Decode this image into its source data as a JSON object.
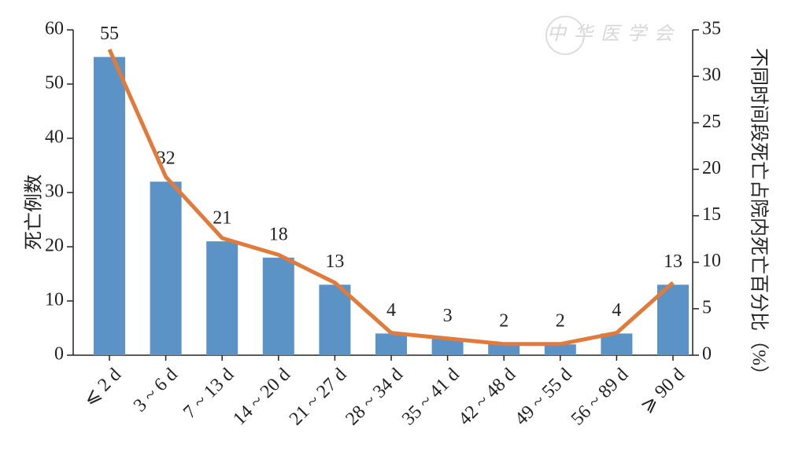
{
  "chart_data": {
    "type": "combo",
    "watermark": "中华医学会",
    "y_label": "死亡例数",
    "y2_label": "不同时间段死亡占院内死亡百分比（%）",
    "categories": [
      "⩽ 2 d",
      "3 ~ 6 d",
      "7 ~ 13 d",
      "14 ~ 20 d",
      "21 ~ 27 d",
      "28 ~ 34 d",
      "35 ~ 41 d",
      "42 ~ 48 d",
      "49 ~ 55 d",
      "56 ~ 89 d",
      "⩾ 90 d"
    ],
    "series": [
      {
        "type": "bar",
        "color": "#5b93c7",
        "values": [
          55,
          32,
          21,
          18,
          13,
          4,
          3,
          2,
          2,
          4,
          13
        ]
      },
      {
        "type": "line",
        "axis": "y2",
        "color": "#e07b3c",
        "values": [
          32.9,
          19.2,
          12.6,
          10.8,
          7.8,
          2.4,
          1.8,
          1.2,
          1.2,
          2.4,
          7.8
        ]
      }
    ],
    "ylim": [
      0,
      60
    ],
    "yticks": [
      0,
      10,
      20,
      30,
      40,
      50,
      60
    ],
    "y2lim": [
      0,
      35
    ],
    "y2ticks": [
      0,
      5,
      10,
      15,
      20,
      25,
      30,
      35
    ]
  }
}
